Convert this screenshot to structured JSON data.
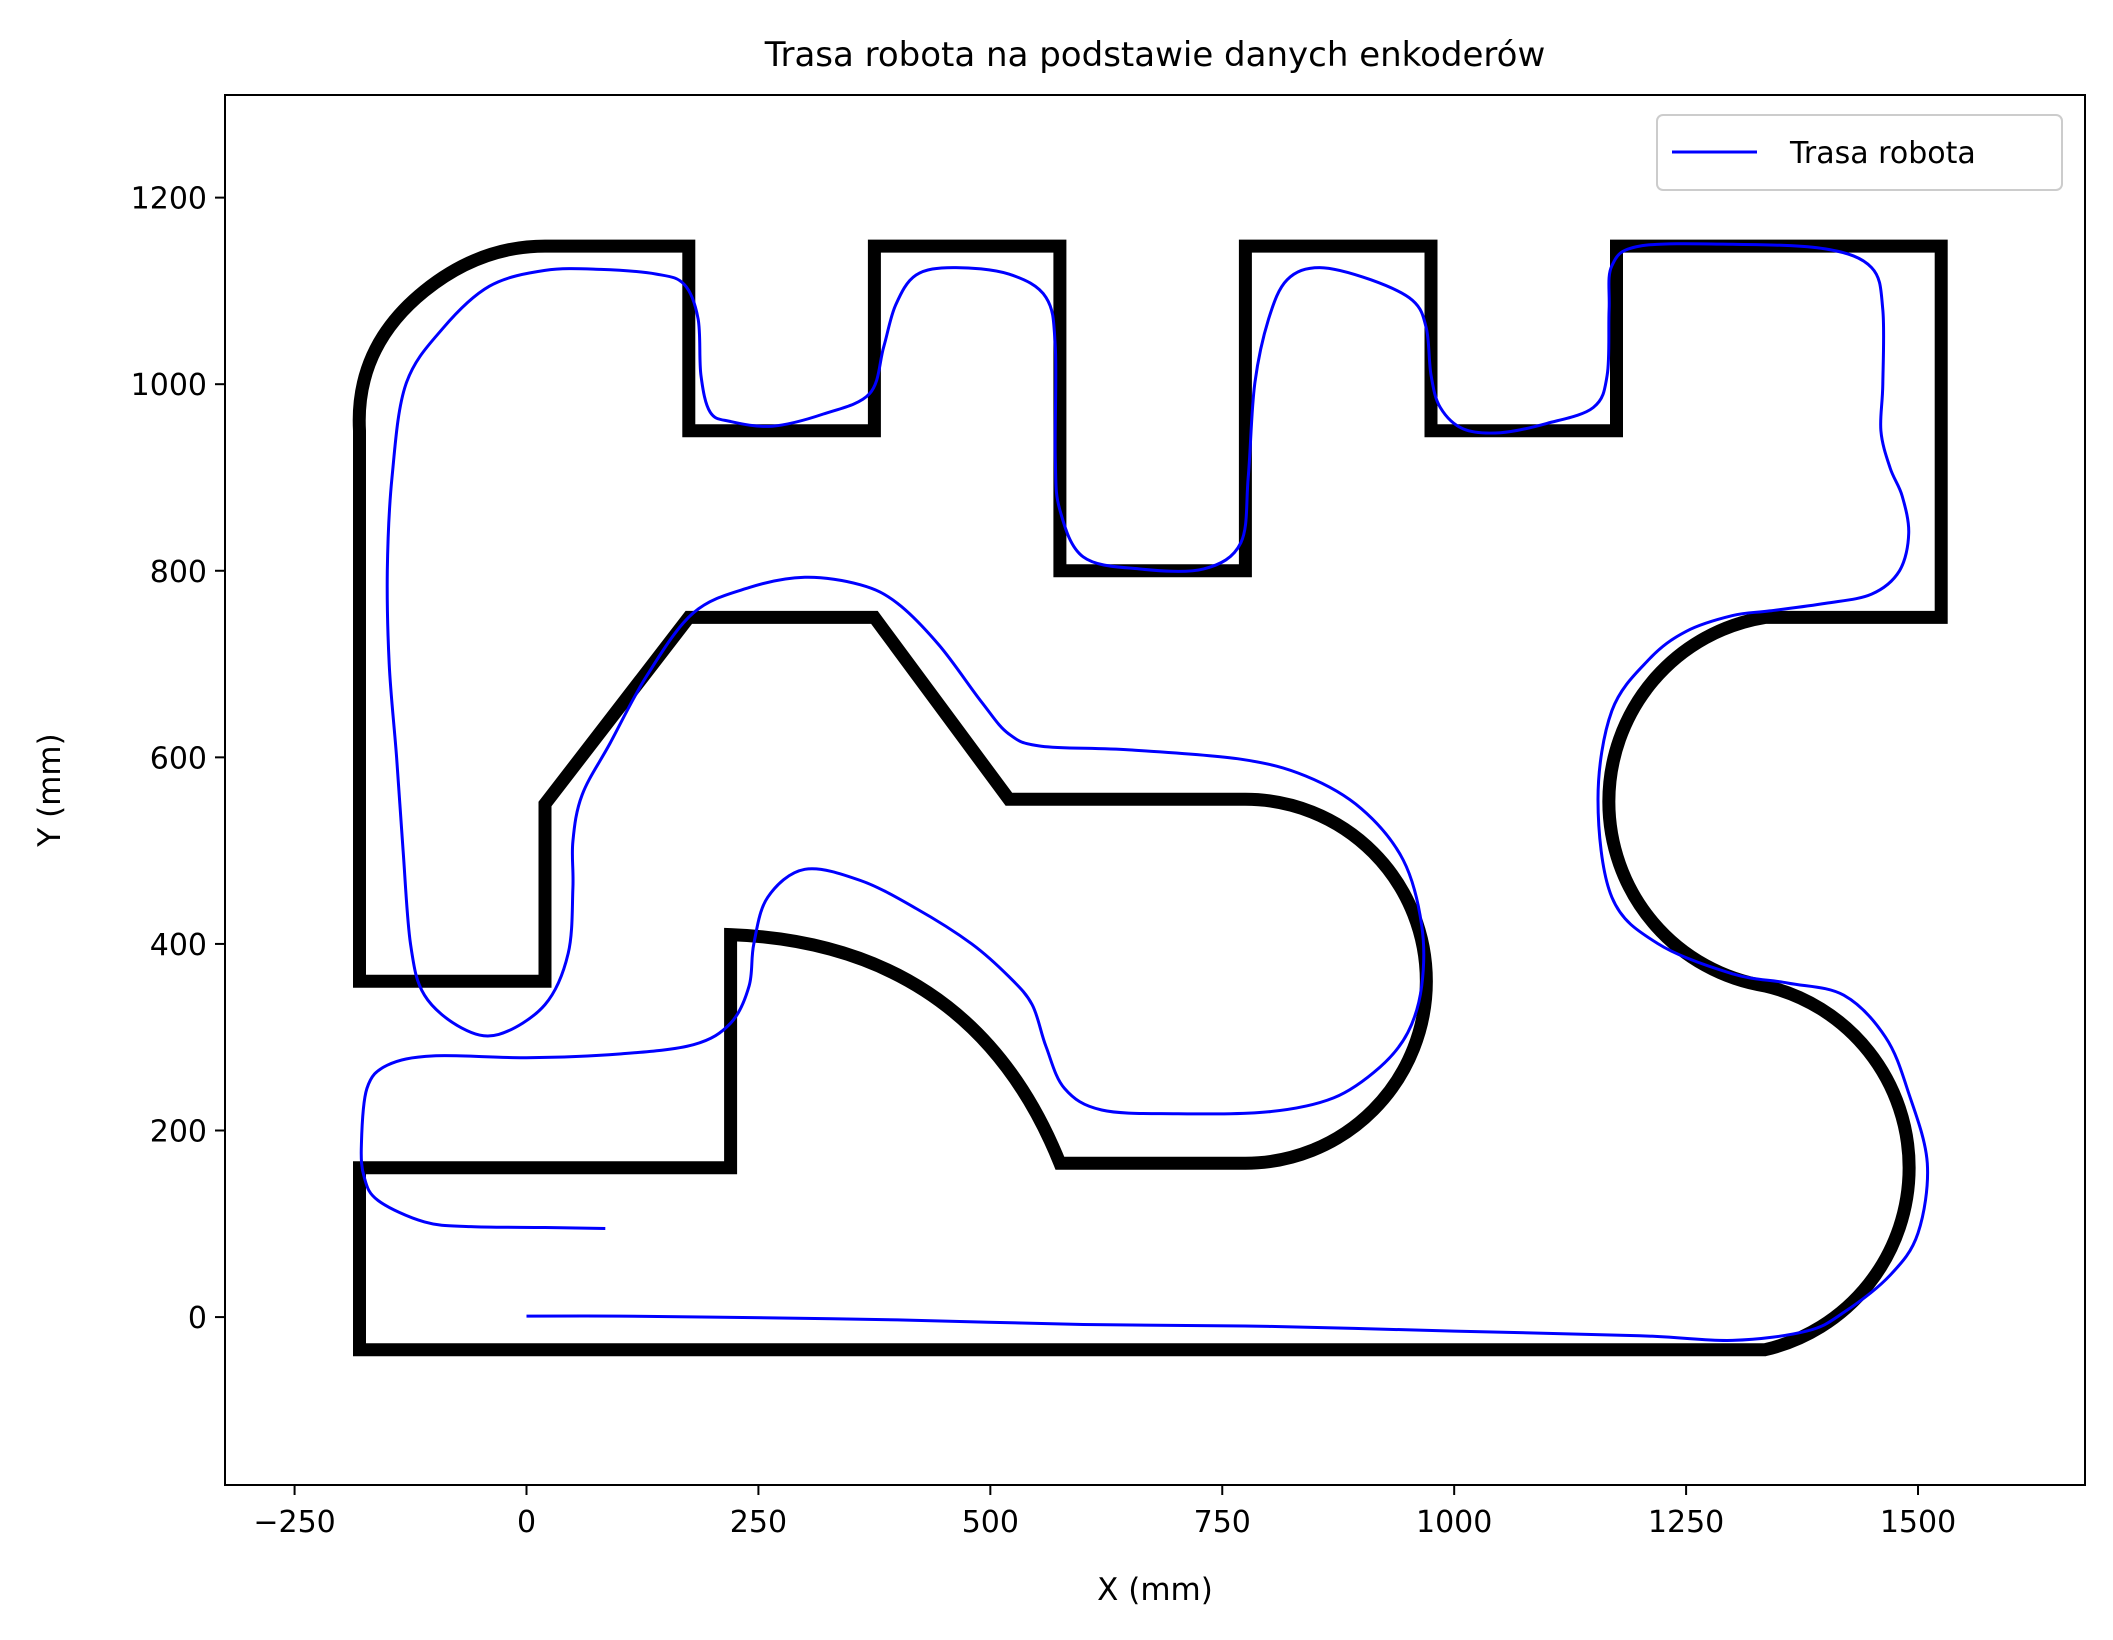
{
  "chart_data": {
    "type": "line",
    "title": "Trasa robota na podstawie danych enkoderów",
    "xlabel": "X (mm)",
    "ylabel": "Y (mm)",
    "xlim": [
      -325,
      1680
    ],
    "ylim": [
      -180,
      1310
    ],
    "xticks": [
      -250,
      0,
      250,
      500,
      750,
      1000,
      1250,
      1500
    ],
    "yticks": [
      0,
      200,
      400,
      600,
      800,
      1000,
      1200
    ],
    "x_tick_labels": [
      "−250",
      "0",
      "250",
      "500",
      "750",
      "1000",
      "1250",
      "1500"
    ],
    "y_tick_labels": [
      "0",
      "200",
      "400",
      "600",
      "800",
      "1000",
      "1200"
    ],
    "grid": false,
    "legend_position": "top-right",
    "track_color": "#000000",
    "series": [
      {
        "name": "Trasa robota",
        "color": "#0000ff",
        "points": [
          [
            85,
            95
          ],
          [
            20,
            96
          ],
          [
            -60,
            97
          ],
          [
            -110,
            102
          ],
          [
            -160,
            125
          ],
          [
            -175,
            150
          ],
          [
            -178,
            185
          ],
          [
            -172,
            245
          ],
          [
            -150,
            270
          ],
          [
            -100,
            280
          ],
          [
            0,
            278
          ],
          [
            100,
            282
          ],
          [
            180,
            292
          ],
          [
            220,
            315
          ],
          [
            240,
            355
          ],
          [
            245,
            400
          ],
          [
            260,
            450
          ],
          [
            300,
            480
          ],
          [
            360,
            468
          ],
          [
            420,
            438
          ],
          [
            480,
            400
          ],
          [
            520,
            365
          ],
          [
            545,
            335
          ],
          [
            560,
            290
          ],
          [
            580,
            245
          ],
          [
            620,
            222
          ],
          [
            700,
            218
          ],
          [
            800,
            220
          ],
          [
            870,
            235
          ],
          [
            920,
            268
          ],
          [
            950,
            305
          ],
          [
            965,
            355
          ],
          [
            965,
            420
          ],
          [
            945,
            490
          ],
          [
            900,
            545
          ],
          [
            840,
            580
          ],
          [
            770,
            598
          ],
          [
            650,
            608
          ],
          [
            555,
            612
          ],
          [
            520,
            625
          ],
          [
            490,
            660
          ],
          [
            445,
            720
          ],
          [
            400,
            765
          ],
          [
            360,
            785
          ],
          [
            300,
            793
          ],
          [
            240,
            782
          ],
          [
            180,
            755
          ],
          [
            130,
            688
          ],
          [
            90,
            615
          ],
          [
            60,
            560
          ],
          [
            50,
            510
          ],
          [
            50,
            460
          ],
          [
            45,
            390
          ],
          [
            20,
            335
          ],
          [
            -30,
            303
          ],
          [
            -70,
            310
          ],
          [
            -110,
            345
          ],
          [
            -125,
            400
          ],
          [
            -133,
            500
          ],
          [
            -140,
            600
          ],
          [
            -148,
            700
          ],
          [
            -150,
            800
          ],
          [
            -145,
            900
          ],
          [
            -130,
            1000
          ],
          [
            -90,
            1060
          ],
          [
            -40,
            1105
          ],
          [
            20,
            1122
          ],
          [
            80,
            1123
          ],
          [
            140,
            1118
          ],
          [
            170,
            1107
          ],
          [
            185,
            1070
          ],
          [
            188,
            1010
          ],
          [
            198,
            970
          ],
          [
            220,
            960
          ],
          [
            265,
            955
          ],
          [
            320,
            968
          ],
          [
            370,
            990
          ],
          [
            385,
            1040
          ],
          [
            398,
            1085
          ],
          [
            420,
            1117
          ],
          [
            460,
            1125
          ],
          [
            520,
            1118
          ],
          [
            560,
            1093
          ],
          [
            570,
            1040
          ],
          [
            570,
            920
          ],
          [
            575,
            865
          ],
          [
            600,
            815
          ],
          [
            660,
            802
          ],
          [
            730,
            802
          ],
          [
            770,
            830
          ],
          [
            778,
            900
          ],
          [
            785,
            1000
          ],
          [
            800,
            1070
          ],
          [
            820,
            1112
          ],
          [
            855,
            1125
          ],
          [
            910,
            1112
          ],
          [
            955,
            1090
          ],
          [
            970,
            1060
          ],
          [
            975,
            1010
          ],
          [
            985,
            975
          ],
          [
            1010,
            952
          ],
          [
            1050,
            948
          ],
          [
            1100,
            958
          ],
          [
            1150,
            975
          ],
          [
            1165,
            1010
          ],
          [
            1167,
            1080
          ],
          [
            1170,
            1127
          ],
          [
            1200,
            1148
          ],
          [
            1300,
            1150
          ],
          [
            1400,
            1145
          ],
          [
            1450,
            1125
          ],
          [
            1462,
            1080
          ],
          [
            1462,
            1000
          ],
          [
            1460,
            950
          ],
          [
            1470,
            910
          ],
          [
            1483,
            880
          ],
          [
            1490,
            840
          ],
          [
            1480,
            800
          ],
          [
            1450,
            775
          ],
          [
            1400,
            765
          ],
          [
            1340,
            757
          ],
          [
            1300,
            752
          ],
          [
            1250,
            735
          ],
          [
            1210,
            705
          ],
          [
            1170,
            650
          ],
          [
            1155,
            555
          ],
          [
            1170,
            450
          ],
          [
            1220,
            400
          ],
          [
            1300,
            368
          ],
          [
            1360,
            358
          ],
          [
            1420,
            345
          ],
          [
            1465,
            300
          ],
          [
            1490,
            240
          ],
          [
            1510,
            165
          ],
          [
            1500,
            90
          ],
          [
            1470,
            45
          ],
          [
            1420,
            5
          ],
          [
            1380,
            -15
          ],
          [
            1300,
            -25
          ],
          [
            1200,
            -20
          ],
          [
            1000,
            -15
          ],
          [
            800,
            -10
          ],
          [
            600,
            -8
          ],
          [
            400,
            -3
          ],
          [
            200,
            0
          ],
          [
            100,
            1
          ],
          [
            0,
            1
          ]
        ]
      }
    ]
  }
}
